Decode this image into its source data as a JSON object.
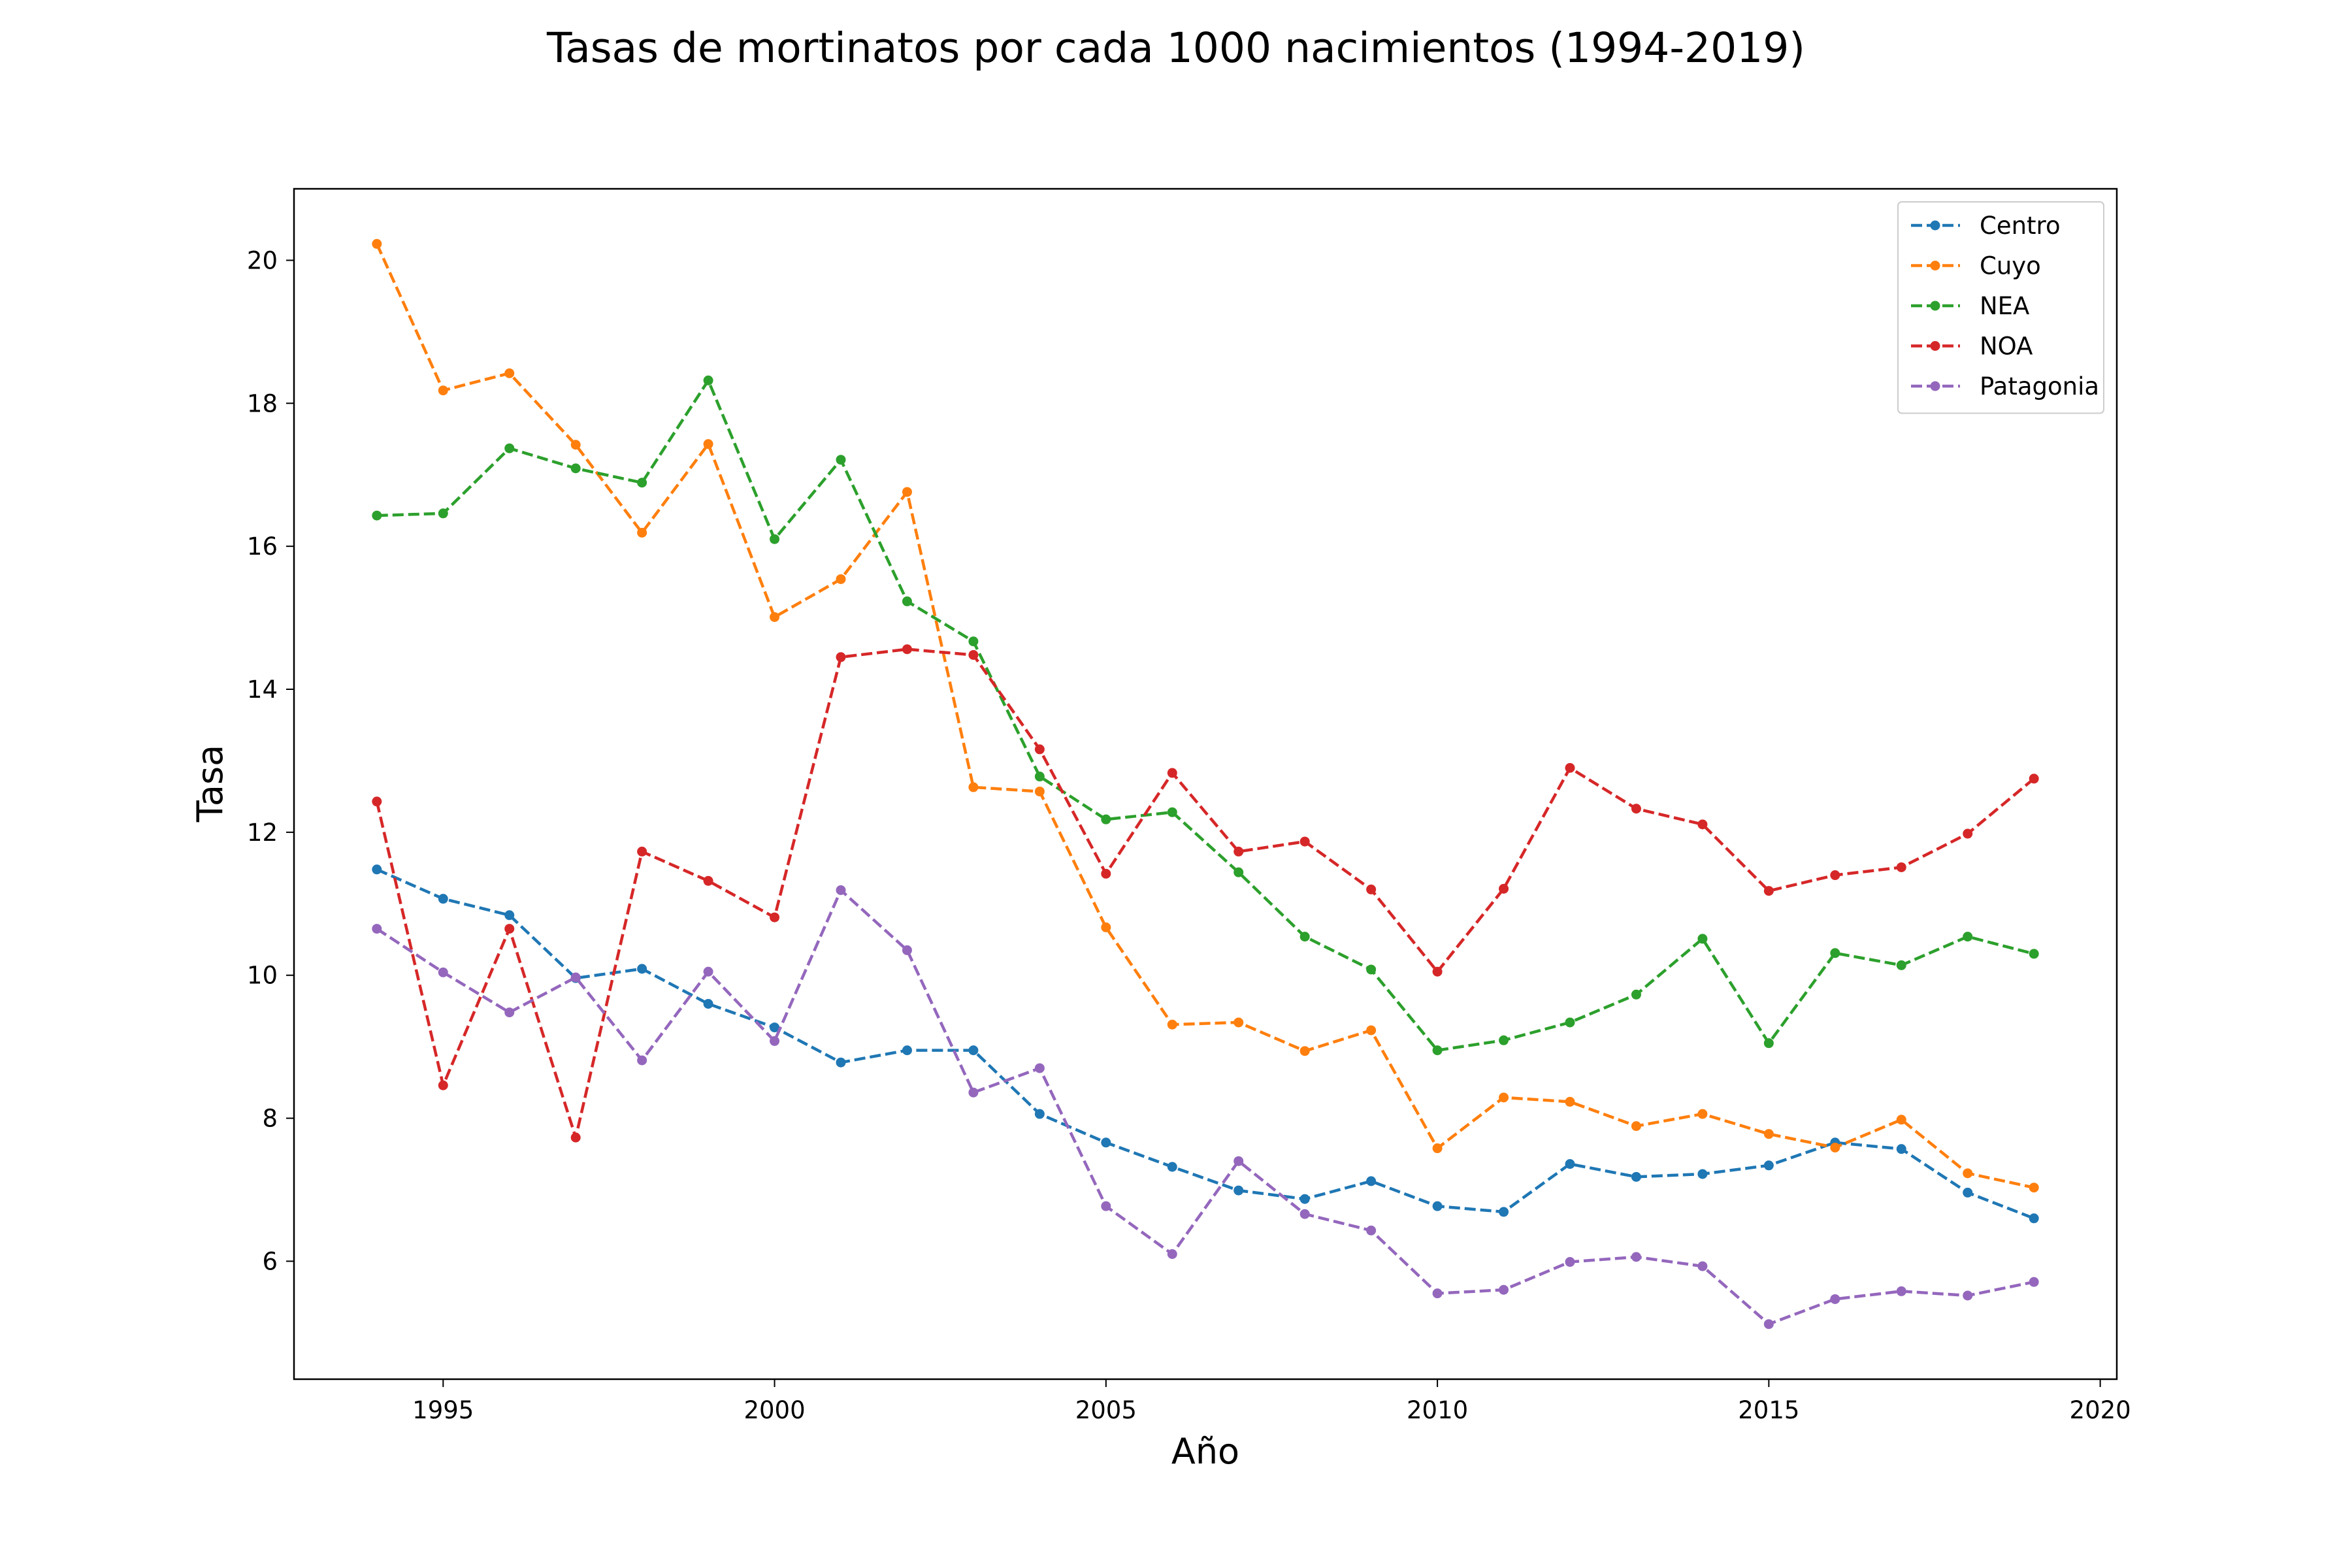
{
  "chart_data": {
    "type": "line",
    "title": "Tasas de mortinatos por cada 1000 nacimientos (1994-2019)",
    "xlabel": "Año",
    "ylabel": "Tasa",
    "xlim": [
      1992.75,
      2020.25
    ],
    "ylim": [
      4.35,
      21.0
    ],
    "xticks": [
      1995,
      2000,
      2005,
      2010,
      2015,
      2020
    ],
    "yticks": [
      6,
      8,
      10,
      12,
      14,
      16,
      18,
      20
    ],
    "grid": false,
    "legend_position": "top-right",
    "line_style": "dashed",
    "marker": "circle",
    "x": [
      1994,
      1995,
      1996,
      1997,
      1998,
      1999,
      2000,
      2001,
      2002,
      2003,
      2004,
      2005,
      2006,
      2007,
      2008,
      2009,
      2010,
      2011,
      2012,
      2013,
      2014,
      2015,
      2016,
      2017,
      2018,
      2019
    ],
    "series": [
      {
        "name": "Centro",
        "color": "#1f77b4",
        "values": [
          11.48,
          11.07,
          10.84,
          9.96,
          10.09,
          9.6,
          9.27,
          8.78,
          8.95,
          8.95,
          8.06,
          7.66,
          7.32,
          6.99,
          6.87,
          7.12,
          6.77,
          6.69,
          7.36,
          7.18,
          7.22,
          7.34,
          7.66,
          7.57,
          6.96,
          6.6
        ]
      },
      {
        "name": "Cuyo",
        "color": "#ff7f0e",
        "values": [
          20.23,
          18.18,
          18.42,
          17.42,
          16.19,
          17.43,
          15.01,
          15.54,
          16.76,
          12.63,
          12.57,
          10.67,
          9.31,
          9.34,
          8.94,
          9.23,
          7.58,
          8.29,
          8.23,
          7.89,
          8.06,
          7.78,
          7.59,
          7.98,
          7.23,
          7.03
        ]
      },
      {
        "name": "NEA",
        "color": "#2ca02c",
        "values": [
          16.43,
          16.46,
          17.37,
          17.09,
          16.89,
          18.32,
          16.1,
          17.21,
          15.23,
          14.67,
          12.78,
          12.18,
          12.28,
          11.44,
          10.54,
          10.08,
          8.95,
          9.09,
          9.34,
          9.73,
          10.51,
          9.05,
          10.31,
          10.14,
          10.54,
          10.3
        ]
      },
      {
        "name": "NOA",
        "color": "#d62728",
        "values": [
          12.43,
          8.46,
          10.65,
          7.73,
          11.73,
          11.32,
          10.81,
          14.45,
          14.56,
          14.48,
          13.16,
          11.42,
          12.83,
          11.73,
          11.87,
          11.2,
          10.05,
          11.21,
          12.9,
          12.33,
          12.11,
          11.18,
          11.4,
          11.51,
          11.98,
          12.75
        ]
      },
      {
        "name": "Patagonia",
        "color": "#9467bd",
        "values": [
          10.65,
          10.04,
          9.48,
          9.97,
          8.81,
          10.05,
          9.08,
          11.19,
          10.35,
          8.36,
          8.7,
          6.77,
          6.1,
          7.4,
          6.66,
          6.43,
          5.55,
          5.6,
          5.99,
          6.06,
          5.93,
          5.12,
          5.47,
          5.58,
          5.52,
          5.71
        ]
      }
    ]
  }
}
